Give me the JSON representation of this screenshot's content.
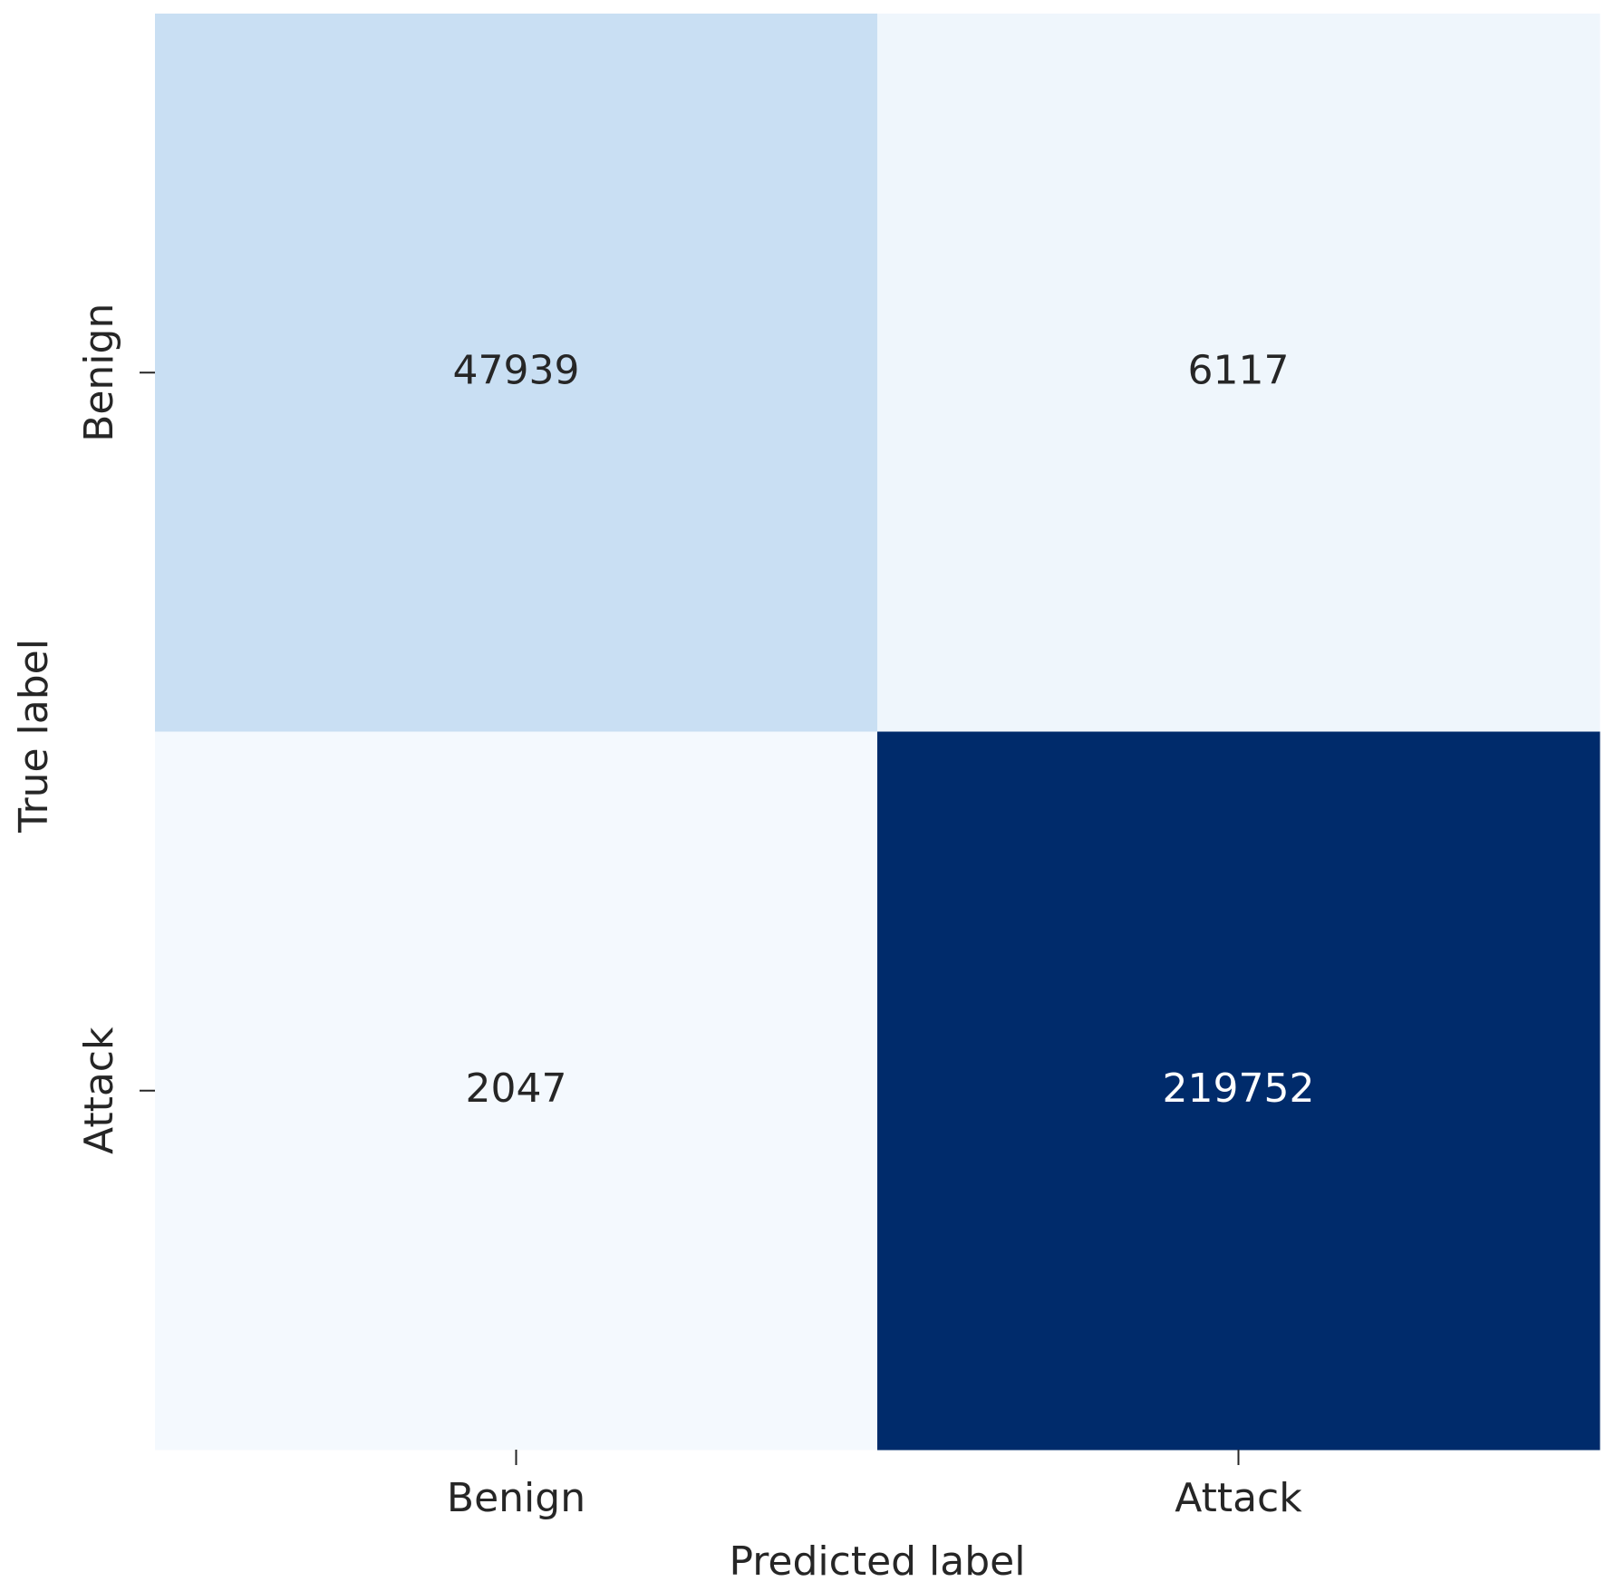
{
  "chart_data": {
    "type": "heatmap",
    "x_categories": [
      "Benign",
      "Attack"
    ],
    "y_categories": [
      "Benign",
      "Attack"
    ],
    "values": [
      [
        47939,
        6117
      ],
      [
        2047,
        219752
      ]
    ],
    "colors": [
      [
        "#c9dff3",
        "#eff6fc"
      ],
      [
        "#f4f9fe",
        "#002b6b"
      ]
    ],
    "xlabel": "Predicted label",
    "ylabel": "True label"
  }
}
